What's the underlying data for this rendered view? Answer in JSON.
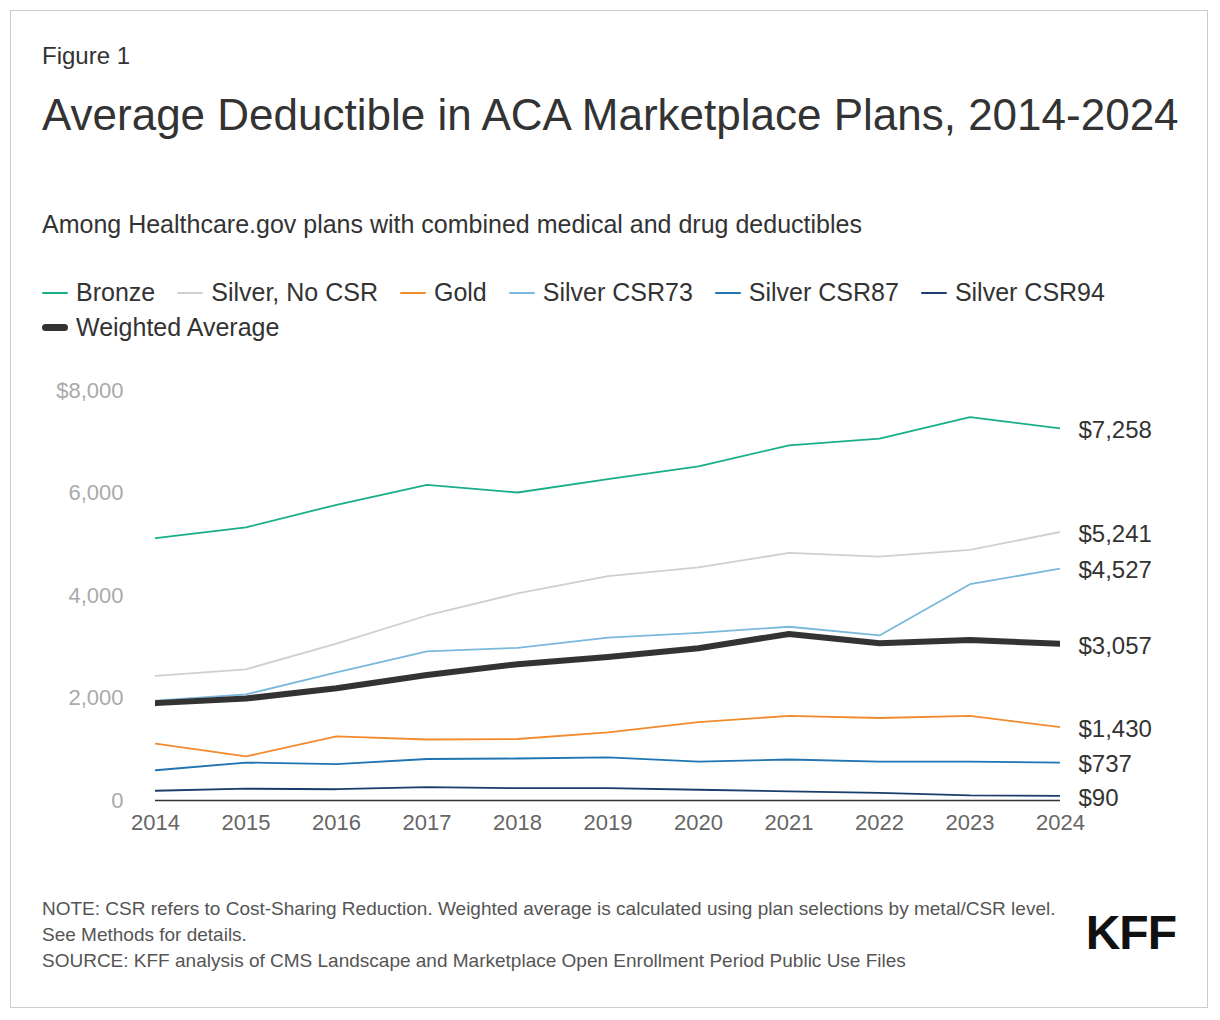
{
  "chart_data": {
    "type": "line",
    "figure_label": "Figure 1",
    "title": "Average Deductible in ACA Marketplace Plans, 2014-2024",
    "subtitle": "Among Healthcare.gov plans with combined medical and drug deductibles",
    "note": "NOTE: CSR refers to Cost-Sharing Reduction. Weighted average is calculated using plan selections by metal/CSR level. See Methods for details.",
    "source": "SOURCE: KFF analysis of CMS Landscape and Marketplace Open Enrollment Period Public Use Files",
    "logo": "KFF",
    "x": [
      2014,
      2015,
      2016,
      2017,
      2018,
      2019,
      2020,
      2021,
      2022,
      2023,
      2024
    ],
    "xlim": [
      2014,
      2024
    ],
    "xticks": [
      2014,
      2015,
      2016,
      2017,
      2018,
      2019,
      2020,
      2021,
      2022,
      2023,
      2024
    ],
    "ylim": [
      0,
      8000
    ],
    "yticks": [
      0,
      {
        "value": 2000,
        "label": "2,000"
      },
      {
        "value": 4000,
        "label": "4,000"
      },
      {
        "value": 6000,
        "label": "6,000"
      },
      {
        "value": 8000,
        "label": "$8,000"
      }
    ],
    "grid": false,
    "series": [
      {
        "name": "Bronze",
        "color": "#19ae8a",
        "line_style": "solid",
        "values": [
          5120,
          5330,
          5770,
          6160,
          6010,
          6270,
          6520,
          6930,
          7060,
          7480,
          7258
        ],
        "value_labels": [
          null,
          null,
          null,
          null,
          null,
          null,
          null,
          null,
          null,
          null,
          "$7,258"
        ]
      },
      {
        "name": "Silver, No CSR",
        "color": "#cfcfcf",
        "line_style": "solid",
        "values": [
          2430,
          2560,
          3060,
          3610,
          4040,
          4380,
          4550,
          4830,
          4760,
          4890,
          5241
        ],
        "value_labels": [
          null,
          null,
          null,
          null,
          null,
          null,
          null,
          null,
          null,
          null,
          "$5,241"
        ]
      },
      {
        "name": "Gold",
        "color": "#f28a2e",
        "line_style": "solid",
        "values": [
          1110,
          860,
          1250,
          1190,
          1200,
          1330,
          1530,
          1650,
          1610,
          1650,
          1430
        ],
        "value_labels": [
          null,
          null,
          null,
          null,
          null,
          null,
          null,
          null,
          null,
          null,
          "$1,430"
        ]
      },
      {
        "name": "Silver CSR73",
        "color": "#7ab8dc",
        "line_style": "solid",
        "values": [
          1950,
          2070,
          2500,
          2910,
          2980,
          3180,
          3270,
          3390,
          3220,
          4220,
          4527
        ],
        "value_labels": [
          null,
          null,
          null,
          null,
          null,
          null,
          null,
          null,
          null,
          null,
          "$4,527"
        ]
      },
      {
        "name": "Silver CSR87",
        "color": "#1f74b1",
        "line_style": "solid",
        "values": [
          590,
          740,
          710,
          810,
          820,
          840,
          760,
          800,
          760,
          760,
          737
        ],
        "value_labels": [
          null,
          null,
          null,
          null,
          null,
          null,
          null,
          null,
          null,
          null,
          "$737"
        ]
      },
      {
        "name": "Silver CSR94",
        "color": "#1b3d6b",
        "line_style": "solid",
        "values": [
          190,
          230,
          220,
          260,
          240,
          240,
          210,
          180,
          150,
          100,
          90
        ],
        "value_labels": [
          null,
          null,
          null,
          null,
          null,
          null,
          null,
          null,
          null,
          null,
          "$90"
        ]
      },
      {
        "name": "Weighted Average",
        "color": "#333333",
        "line_style": "bold",
        "values": [
          1900,
          1990,
          2190,
          2450,
          2660,
          2800,
          2970,
          3250,
          3070,
          3130,
          3057
        ],
        "value_labels": [
          null,
          null,
          null,
          null,
          null,
          null,
          null,
          null,
          null,
          null,
          "$3,057"
        ]
      }
    ]
  }
}
